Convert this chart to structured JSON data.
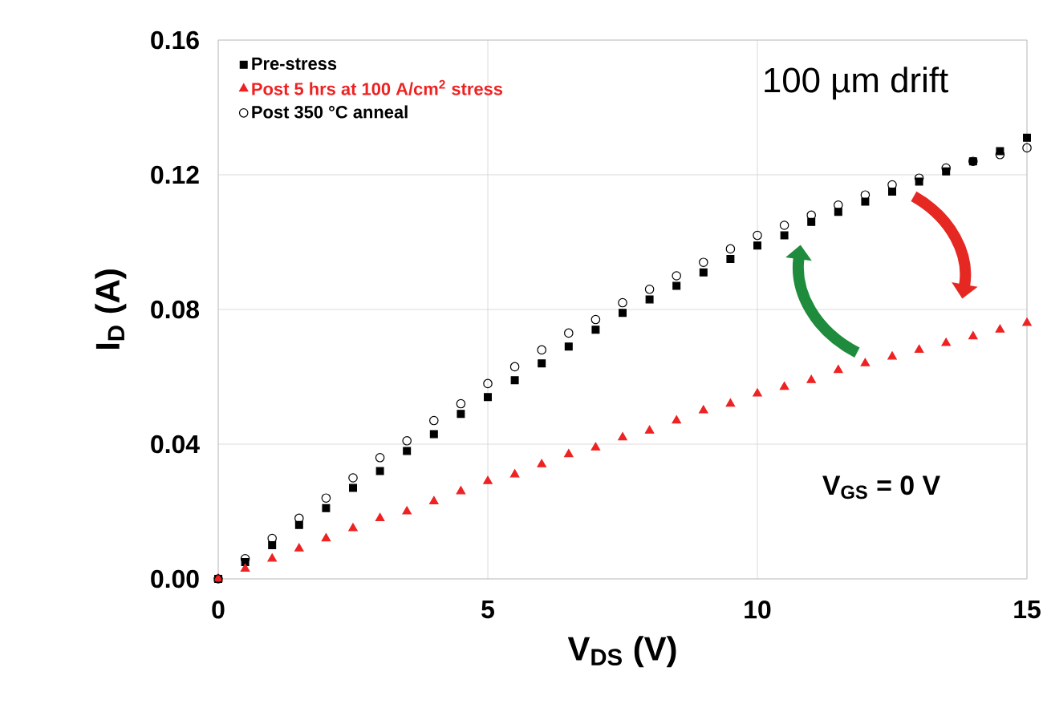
{
  "chart_data": {
    "type": "scatter",
    "xlabel": "V$_{DS}$ (V)",
    "ylabel": "I$_{D}$ (A)",
    "x": [
      0,
      0.5,
      1,
      1.5,
      2,
      2.5,
      3,
      3.5,
      4,
      4.5,
      5,
      5.5,
      6,
      6.5,
      7,
      7.5,
      8,
      8.5,
      9,
      9.5,
      10,
      10.5,
      11,
      11.5,
      12,
      12.5,
      13,
      13.5,
      14,
      14.5,
      15
    ],
    "series": [
      {
        "name": "Pre-stress",
        "color": "#000000",
        "marker": "square",
        "values": [
          0,
          0.005,
          0.01,
          0.016,
          0.021,
          0.027,
          0.032,
          0.038,
          0.043,
          0.049,
          0.054,
          0.059,
          0.064,
          0.069,
          0.074,
          0.079,
          0.083,
          0.087,
          0.091,
          0.095,
          0.099,
          0.102,
          0.106,
          0.109,
          0.112,
          0.115,
          0.118,
          0.121,
          0.124,
          0.127,
          0.131
        ]
      },
      {
        "name": "Post 5 hrs at 100 A/cm$^{2}$ stress",
        "color": "#ee2222",
        "marker": "triangle",
        "values": [
          0,
          0.003,
          0.006,
          0.009,
          0.012,
          0.015,
          0.018,
          0.02,
          0.023,
          0.026,
          0.029,
          0.031,
          0.034,
          0.037,
          0.039,
          0.042,
          0.044,
          0.047,
          0.05,
          0.052,
          0.055,
          0.057,
          0.059,
          0.062,
          0.064,
          0.066,
          0.068,
          0.07,
          0.072,
          0.074,
          0.076
        ]
      },
      {
        "name": "Post 350 °C anneal",
        "color": "#000000",
        "marker": "circle",
        "values": [
          0,
          0.006,
          0.012,
          0.018,
          0.024,
          0.03,
          0.036,
          0.041,
          0.047,
          0.052,
          0.058,
          0.063,
          0.068,
          0.073,
          0.077,
          0.082,
          0.086,
          0.09,
          0.094,
          0.098,
          0.102,
          0.105,
          0.108,
          0.111,
          0.114,
          0.117,
          0.119,
          0.122,
          0.124,
          0.126,
          0.128
        ]
      }
    ],
    "xlim": [
      0,
      15
    ],
    "xticks": [
      0,
      5,
      10,
      15
    ],
    "ylim": [
      0,
      0.16
    ],
    "yticks": [
      {
        "value": 0,
        "label": "0.00"
      },
      {
        "value": 0.04,
        "label": "0.04"
      },
      {
        "value": 0.08,
        "label": "0.08"
      },
      {
        "value": 0.12,
        "label": "0.12"
      },
      {
        "value": 0.16,
        "label": "0.16"
      }
    ],
    "grid": true,
    "legend": "top left",
    "annotations": [
      "100 µm drift",
      "V$_{GS}$ = 0 V"
    ]
  }
}
